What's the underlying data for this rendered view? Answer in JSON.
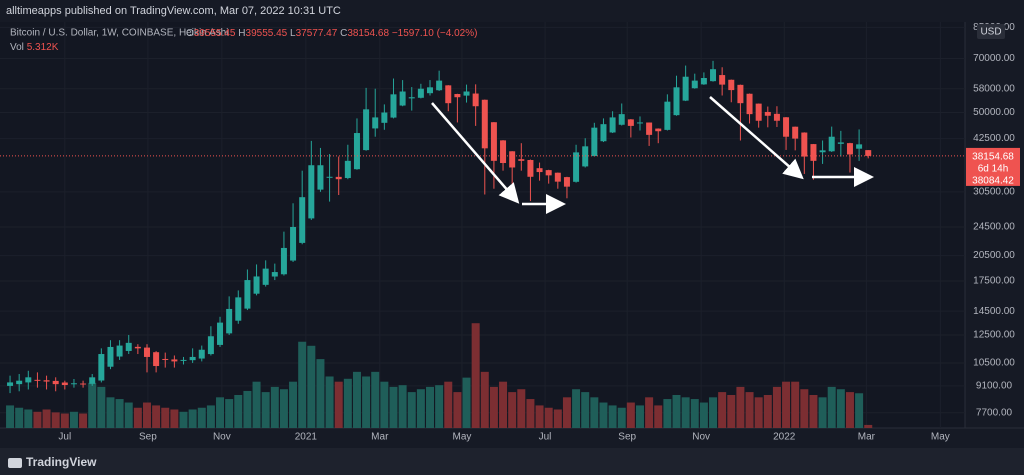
{
  "header": {
    "publisher": "alltimeapps published on TradingView.com, Mar 07, 2022 10:31 UTC"
  },
  "footer": {
    "brand": "TradingView"
  },
  "chart_data": {
    "type": "candlestick",
    "title": "Bitcoin / U.S. Dollar, 1W, COINBASE, Heikin Ashi",
    "ohlc_letters": [
      "O",
      "H",
      "L",
      "C"
    ],
    "change_label": "−1597.10 (−4.02%)",
    "volume_name": "Vol",
    "volume_last_label": "5.312K",
    "currency": "USD",
    "price_box": [
      "38154.68",
      "6d 14h",
      "38084.42"
    ],
    "up_color": "#26a69a",
    "down_color": "#ef5350",
    "volume_up_color": "#1f5e59",
    "volume_down_color": "#7c2e32",
    "log_scale": true,
    "open": [
      9100,
      9200,
      9300,
      9450,
      9425,
      9388,
      9294,
      9222,
      9236,
      9218,
      9409,
      10255,
      10928,
      11314,
      11607,
      11554,
      11227,
      10764,
      10732,
      10666,
      10683,
      10792,
      11096,
      11748,
      12624,
      13662,
      14731,
      16166,
      17083,
      17992,
      18246,
      19873,
      22187,
      25844,
      30922,
      33461,
      33481,
      33241,
      35121,
      39561,
      45281,
      46891,
      48446,
      52223,
      54612,
      54806,
      56403,
      57452,
      59226,
      56113,
      55557,
      56279,
      54140,
      47070,
      42035,
      39268,
      37384,
      37192,
      35346,
      34923,
      34362,
      33431,
      32466,
      35733,
      38117,
      41809,
      44155,
      46328,
      47914,
      46957,
      46979,
      45240,
      44870,
      49185,
      53843,
      58172,
      59586,
      60793,
      63147,
      61324,
      59412,
      56206,
      52853,
      50177,
      49589,
      48545,
      45773,
      44137,
      41069,
      39035,
      39268,
      41134,
      41317,
      39909,
      39555.45
    ],
    "high": [
      9700,
      9800,
      10000,
      9900,
      9700,
      9600,
      9400,
      9500,
      9400,
      9800,
      11500,
      12100,
      12100,
      12500,
      11800,
      11800,
      11300,
      11200,
      11000,
      10900,
      11500,
      11700,
      13200,
      14000,
      15900,
      16500,
      18800,
      19400,
      19900,
      19500,
      23800,
      28400,
      34800,
      41900,
      40100,
      38600,
      38000,
      40900,
      48200,
      58300,
      58000,
      52600,
      61800,
      61200,
      58600,
      59800,
      61200,
      64900,
      59300,
      56200,
      59500,
      59600,
      54200,
      47100,
      42100,
      39300,
      41300,
      37300,
      36600,
      35000,
      34400,
      33500,
      40900,
      42600,
      46900,
      48200,
      50400,
      52900,
      48000,
      48800,
      47000,
      45300,
      56000,
      62900,
      67000,
      63700,
      64200,
      69000,
      66300,
      61400,
      59500,
      56300,
      52900,
      51900,
      52000,
      48600,
      45800,
      44200,
      41100,
      42000,
      45800,
      44600,
      41400,
      45000,
      39555.45
    ],
    "low": [
      8700,
      8800,
      8900,
      9000,
      8900,
      8800,
      8900,
      9000,
      9000,
      9100,
      9300,
      10100,
      10700,
      11100,
      11100,
      9900,
      9900,
      10200,
      10200,
      10400,
      10500,
      10600,
      11000,
      11600,
      12500,
      13400,
      14600,
      16000,
      16900,
      17600,
      18100,
      19700,
      22000,
      25600,
      30500,
      28700,
      29900,
      33000,
      35000,
      39400,
      43000,
      44900,
      48200,
      52000,
      50600,
      54600,
      55600,
      57200,
      50400,
      47000,
      53200,
      46000,
      30000,
      31100,
      34800,
      31000,
      34800,
      28800,
      32700,
      32100,
      31100,
      29300,
      32300,
      35500,
      38000,
      41600,
      44000,
      46100,
      42800,
      44700,
      40600,
      41300,
      44700,
      49000,
      53700,
      58000,
      59400,
      60600,
      55600,
      53300,
      42000,
      46700,
      45500,
      45600,
      45700,
      39600,
      39500,
      34100,
      32900,
      36300,
      39100,
      38000,
      34400,
      37000,
      37577.47
    ],
    "close": [
      9300,
      9400,
      9600,
      9400,
      9350,
      9200,
      9150,
      9250,
      9200,
      9600,
      11100,
      11600,
      11700,
      11900,
      11500,
      10900,
      10300,
      10700,
      10600,
      10700,
      10900,
      11400,
      12400,
      13500,
      14700,
      15800,
      17600,
      18000,
      18900,
      18500,
      21500,
      24500,
      29500,
      36000,
      36000,
      33500,
      33000,
      37000,
      44000,
      51000,
      48500,
      50000,
      56000,
      57000,
      55000,
      58000,
      58500,
      61000,
      53000,
      55000,
      57000,
      52000,
      40000,
      37000,
      36500,
      35500,
      37000,
      33500,
      34500,
      33800,
      32500,
      31500,
      39000,
      40500,
      45500,
      46500,
      48500,
      49500,
      46000,
      47000,
      43500,
      44500,
      53500,
      58500,
      62500,
      61000,
      62000,
      65500,
      59500,
      57500,
      53000,
      49500,
      47500,
      49000,
      47500,
      43000,
      42500,
      38000,
      37000,
      39500,
      43000,
      41500,
      38500,
      41000,
      38154.68
    ],
    "volume": [
      39000,
      35000,
      32000,
      28000,
      32000,
      27000,
      25000,
      28000,
      25000,
      78000,
      71000,
      53000,
      50000,
      44000,
      35000,
      44000,
      39000,
      35000,
      32000,
      28000,
      32000,
      35000,
      39000,
      53000,
      50000,
      57000,
      64000,
      80000,
      62000,
      71000,
      67000,
      80000,
      149000,
      142000,
      119000,
      89000,
      80000,
      85000,
      97000,
      89000,
      97000,
      80000,
      71000,
      74000,
      62000,
      67000,
      71000,
      74000,
      80000,
      62000,
      87000,
      181000,
      97000,
      71000,
      80000,
      62000,
      67000,
      50000,
      39000,
      35000,
      32000,
      53000,
      67000,
      62000,
      53000,
      44000,
      39000,
      35000,
      44000,
      39000,
      53000,
      39000,
      50000,
      57000,
      53000,
      50000,
      44000,
      53000,
      62000,
      57000,
      71000,
      62000,
      53000,
      57000,
      71000,
      80000,
      80000,
      67000,
      57000,
      53000,
      71000,
      67000,
      62000,
      60000,
      5312
    ],
    "volume_lim": [
      0,
      190000
    ],
    "xlim": [
      -1.1,
      104.6
    ],
    "xticks": [
      {
        "value": 6.0,
        "label": "Jul"
      },
      {
        "value": 15.1,
        "label": "Sep"
      },
      {
        "value": 23.2,
        "label": "Nov"
      },
      {
        "value": 32.4,
        "label": "2021"
      },
      {
        "value": 40.5,
        "label": "Mar"
      },
      {
        "value": 49.5,
        "label": "May"
      },
      {
        "value": 58.6,
        "label": "Jul"
      },
      {
        "value": 67.6,
        "label": "Sep"
      },
      {
        "value": 75.7,
        "label": "Nov"
      },
      {
        "value": 84.8,
        "label": "2022"
      },
      {
        "value": 93.8,
        "label": "Mar"
      },
      {
        "value": 101.9,
        "label": "May"
      }
    ],
    "ylim": [
      7000,
      89000
    ],
    "yticks": [
      {
        "value": 85000,
        "label": "85000.00"
      },
      {
        "value": 70000,
        "label": "70000.00"
      },
      {
        "value": 58000,
        "label": "58000.00"
      },
      {
        "value": 50000,
        "label": "50000.00"
      },
      {
        "value": 42500,
        "label": "42500.00"
      },
      {
        "value": 30500,
        "label": "30500.00"
      },
      {
        "value": 24500,
        "label": "24500.00"
      },
      {
        "value": 20500,
        "label": "20500.00"
      },
      {
        "value": 17500,
        "label": "17500.00"
      },
      {
        "value": 14500,
        "label": "14500.00"
      },
      {
        "value": 12500,
        "label": "12500.00"
      },
      {
        "value": 10500,
        "label": "10500.00"
      },
      {
        "value": 9100,
        "label": "9100.00"
      },
      {
        "value": 7700,
        "label": "7700.00"
      }
    ],
    "grid": true
  }
}
